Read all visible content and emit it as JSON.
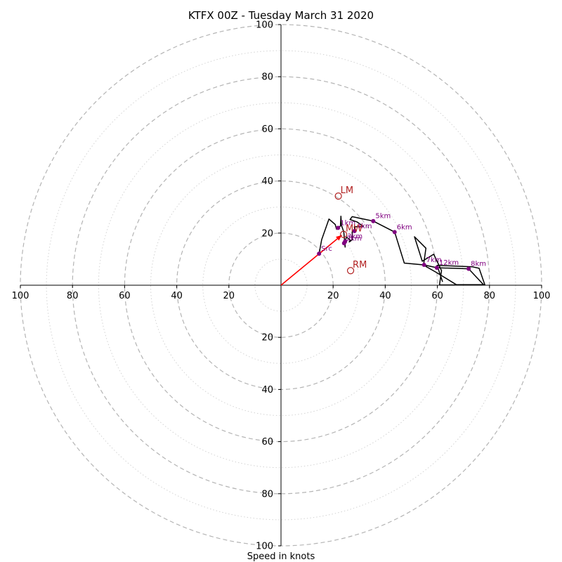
{
  "chart_data": {
    "type": "line",
    "title": "KTFX 00Z - Tuesday March 31 2020",
    "xlabel": "Speed in knots",
    "ylabel": "",
    "xlim": [
      -100,
      100
    ],
    "ylim": [
      -100,
      100
    ],
    "rings_major": [
      20,
      40,
      60,
      80,
      100
    ],
    "rings_minor": [
      10,
      30,
      50,
      70,
      90
    ],
    "x_tick_labels": [
      "100",
      "80",
      "60",
      "40",
      "20",
      "20",
      "40",
      "60",
      "80",
      "100"
    ],
    "x_tick_values": [
      -100,
      -80,
      -60,
      -40,
      -20,
      20,
      40,
      60,
      80,
      100
    ],
    "y_tick_labels": [
      "100",
      "80",
      "60",
      "40",
      "20",
      "20",
      "40",
      "60",
      "80",
      "100"
    ],
    "y_tick_values": [
      100,
      80,
      60,
      40,
      20,
      -20,
      -40,
      -60,
      -80,
      -100
    ],
    "hodograph": {
      "color": "#000000",
      "points": [
        [
          14.6,
          12.1
        ],
        [
          15.6,
          17.5
        ],
        [
          18.4,
          25.4
        ],
        [
          20.8,
          23.3
        ],
        [
          21.3,
          21.5
        ],
        [
          22.8,
          22.7
        ],
        [
          23.0,
          26.5
        ],
        [
          23.2,
          23.0
        ],
        [
          24.1,
          20.4
        ],
        [
          24.6,
          14.6
        ],
        [
          24.6,
          17.3
        ],
        [
          25.2,
          18.4
        ],
        [
          26.6,
          17.3
        ],
        [
          26.2,
          16.6
        ],
        [
          27.4,
          17.5
        ],
        [
          27.3,
          20.4
        ],
        [
          28.5,
          20.6
        ],
        [
          28.1,
          22.4
        ],
        [
          31.6,
          22.6
        ],
        [
          29.1,
          24.3
        ],
        [
          26.5,
          25.2
        ],
        [
          27.3,
          26.3
        ],
        [
          35.4,
          24.6
        ],
        [
          43.6,
          20.4
        ],
        [
          47.3,
          8.5
        ],
        [
          54.9,
          7.8
        ],
        [
          59.8,
          6.7
        ],
        [
          72.0,
          6.3
        ],
        [
          77.8,
          0.1
        ],
        [
          60.8,
          0.1
        ],
        [
          61.6,
          5.6
        ],
        [
          58.6,
          11.9
        ],
        [
          54.2,
          9.2
        ],
        [
          51.2,
          18.6
        ],
        [
          55.6,
          14.2
        ],
        [
          54.8,
          8.5
        ],
        [
          55.6,
          7.2
        ],
        [
          59.3,
          5.1
        ],
        [
          67.3,
          0.2
        ],
        [
          78.2,
          0.2
        ],
        [
          76.0,
          6.5
        ],
        [
          73.3,
          7.1
        ],
        [
          59.9,
          7.6
        ],
        [
          62.0,
          1.3
        ]
      ]
    },
    "height_markers": {
      "color": "#800080",
      "points": [
        {
          "label": "Src",
          "x": 14.6,
          "y": 12.1
        },
        {
          "label": "1km",
          "x": 21.9,
          "y": 22.0
        },
        {
          "label": "2km",
          "x": 24.2,
          "y": 16.1
        },
        {
          "label": "3km",
          "x": 24.6,
          "y": 16.8
        },
        {
          "label": "4km",
          "x": 28.2,
          "y": 20.8
        },
        {
          "label": "5km",
          "x": 35.4,
          "y": 24.6
        },
        {
          "label": "6km",
          "x": 43.6,
          "y": 20.4
        },
        {
          "label": "7km",
          "x": 54.9,
          "y": 7.8
        },
        {
          "label": "8km",
          "x": 72.0,
          "y": 6.3
        },
        {
          "label": "12km",
          "x": 59.8,
          "y": 6.7
        }
      ]
    },
    "storm_motion": {
      "color": "#b22222",
      "points": [
        {
          "label": "LM",
          "x": 22.0,
          "y": 34.2
        },
        {
          "label": "RM",
          "x": 26.7,
          "y": 5.6
        },
        {
          "label": "MW",
          "x": 24.0,
          "y": 19.5
        }
      ]
    },
    "vector": {
      "color": "#ff0000",
      "x0": 0,
      "y0": 0,
      "x1": 23.3,
      "y1": 19.2
    },
    "grid": true
  }
}
